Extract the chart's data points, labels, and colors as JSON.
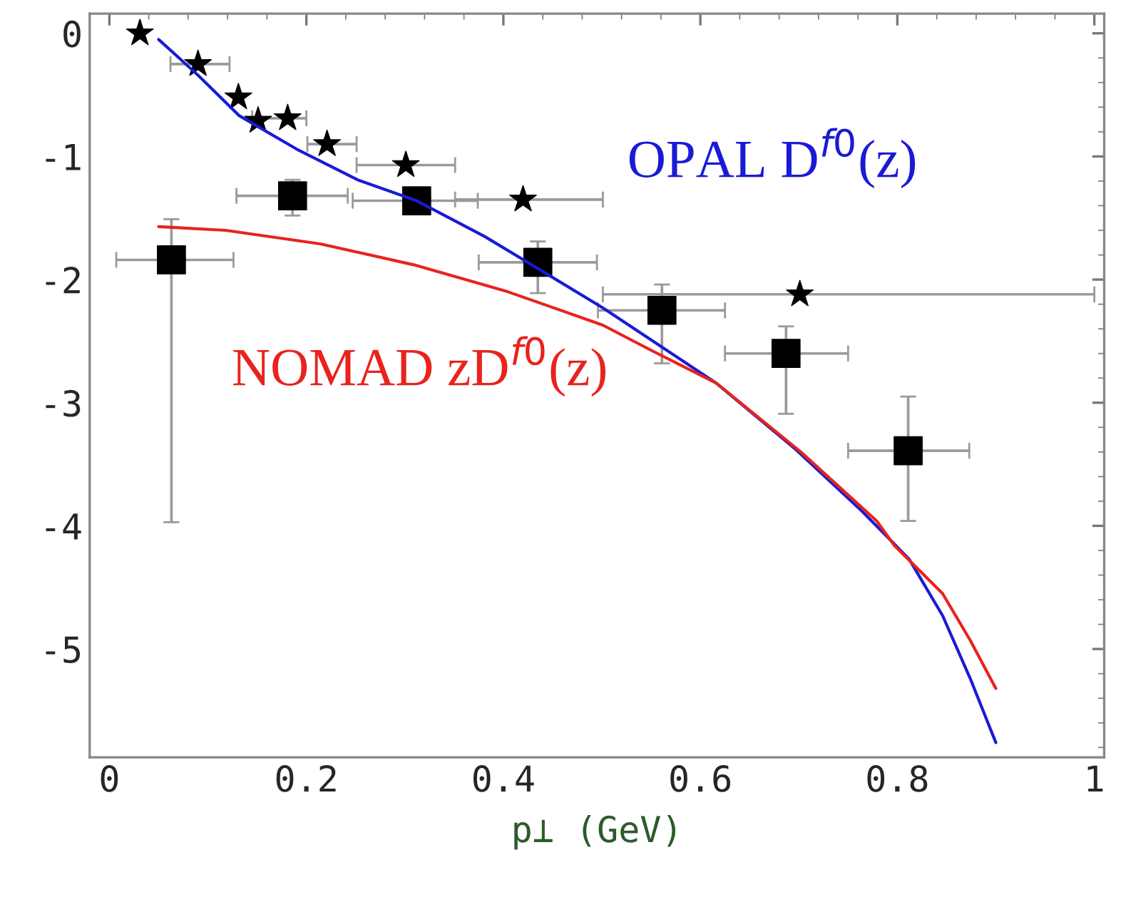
{
  "chart_data": {
    "type": "scatter",
    "xlabel": "p⊥ (GeV)",
    "xlim": [
      -0.02,
      1.01
    ],
    "ylim": [
      -5.88,
      0.16
    ],
    "xticks": [
      0,
      0.2,
      0.4,
      0.6,
      0.8,
      1
    ],
    "yticks": [
      0,
      -1,
      -2,
      -3,
      -4,
      -5
    ],
    "grid": false,
    "legend": false,
    "series": [
      {
        "color": "#000000",
        "marker": "star",
        "x": [
          0.031,
          0.09,
          0.131,
          0.151,
          0.181,
          0.221,
          0.301,
          0.42,
          0.701
        ],
        "values": [
          0.0,
          -0.25,
          -0.52,
          -0.71,
          -0.69,
          -0.9,
          -1.07,
          -1.35,
          -2.12
        ],
        "xerrors": [
          null,
          [
            0.062,
            0.122
          ],
          null,
          null,
          [
            0.145,
            0.2
          ],
          [
            0.201,
            0.251
          ],
          [
            0.251,
            0.351
          ],
          [
            0.351,
            0.501
          ],
          [
            0.501,
            1.0
          ]
        ]
      },
      {
        "color": "#000000",
        "marker": "square",
        "x": [
          0.063,
          0.186,
          0.312,
          0.435,
          0.561,
          0.687,
          0.811
        ],
        "values": [
          -1.84,
          -1.32,
          -1.36,
          -1.86,
          -2.25,
          -2.6,
          -3.39
        ],
        "xerrors": [
          [
            0.007,
            0.126
          ],
          [
            0.129,
            0.242
          ],
          [
            0.247,
            0.374
          ],
          [
            0.375,
            0.495
          ],
          [
            0.496,
            0.625
          ],
          [
            0.625,
            0.75
          ],
          [
            0.75,
            0.873
          ]
        ],
        "errors": [
          [
            -3.97,
            -1.51
          ],
          [
            -1.48,
            -1.19
          ],
          null,
          [
            -2.11,
            -1.69
          ],
          [
            -2.68,
            -2.04
          ],
          [
            -3.09,
            -2.38
          ],
          [
            -3.96,
            -2.95
          ]
        ]
      },
      {
        "type": "line",
        "name": "OPAL D$^{f0}$(z)",
        "color": "#1a1ad6",
        "marker": "none",
        "x": [
          0.05,
          0.09,
          0.132,
          0.19,
          0.252,
          0.312,
          0.381,
          0.435,
          0.501,
          0.616,
          0.697,
          0.764,
          0.812,
          0.846,
          0.874,
          0.9
        ],
        "values": [
          -0.05,
          -0.34,
          -0.67,
          -0.94,
          -1.19,
          -1.36,
          -1.65,
          -1.91,
          -2.23,
          -2.84,
          -3.38,
          -3.88,
          -4.27,
          -4.73,
          -5.24,
          -5.76
        ]
      },
      {
        "type": "line",
        "name": "NOMAD zD$^{f0}$(z)",
        "color": "#e8231e",
        "marker": "none",
        "x": [
          0.05,
          0.118,
          0.214,
          0.309,
          0.405,
          0.501,
          0.549,
          0.616,
          0.702,
          0.779,
          0.797,
          0.846,
          0.874,
          0.9
        ],
        "values": [
          -1.57,
          -1.6,
          -1.71,
          -1.88,
          -2.1,
          -2.37,
          -2.57,
          -2.84,
          -3.4,
          -3.96,
          -4.16,
          -4.55,
          -4.93,
          -5.32
        ]
      }
    ]
  }
}
